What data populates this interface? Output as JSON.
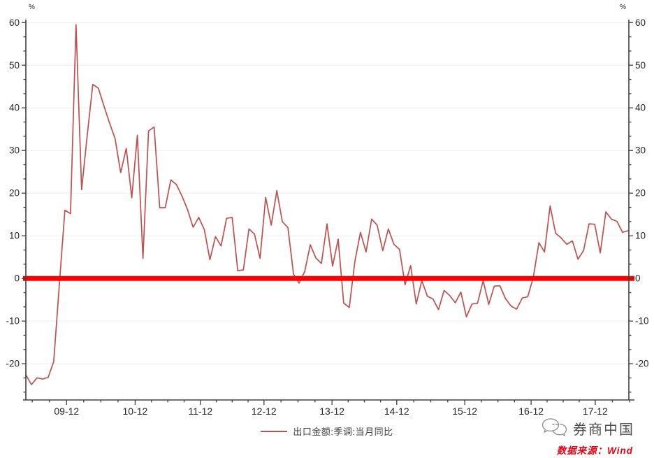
{
  "chart_data": {
    "type": "line",
    "title": "",
    "unit_left": "%",
    "unit_right": "%",
    "xlabel": "",
    "ylabel": "",
    "y_ticks": [
      60,
      50,
      40,
      30,
      20,
      10,
      0,
      -10,
      -20
    ],
    "y_range": [
      -28.5,
      60.7
    ],
    "grid": true,
    "legend_position": "bottom-center",
    "x_tick_labels": [
      "09-12",
      "10-12",
      "11-12",
      "12-12",
      "13-12",
      "14-12",
      "15-12",
      "16-12",
      "17-12"
    ],
    "x_tick_index": [
      7.3,
      19.6,
      31.3,
      42.7,
      54.9,
      66.5,
      78.7,
      90.6,
      102.1
    ],
    "zero_line": {
      "value": 0,
      "color": "#ff0000",
      "thickness": 7
    },
    "colors": {
      "axis": "#404040",
      "grid": "#eeeeee",
      "tick_label": "#262626"
    },
    "series": [
      {
        "name": "出口金额:季调:当月同比",
        "color": "#c0504d",
        "values": [
          -22.6,
          -24.9,
          -23.3,
          -23.6,
          -23.2,
          -19.5,
          -1.5,
          16,
          15.2,
          59.5,
          20.8,
          33.5,
          45.5,
          44.6,
          40.5,
          36.5,
          32.8,
          24.8,
          30.5,
          18.9,
          33.6,
          4.7,
          34.6,
          35.5,
          16.6,
          16.6,
          23.1,
          22,
          19.3,
          16.1,
          12,
          14.3,
          11.5,
          4.4,
          9.8,
          7.6,
          14.1,
          14.3,
          1.8,
          2,
          11.6,
          10.4,
          4.7,
          19,
          12.5,
          20.6,
          13.3,
          11.9,
          1,
          -1.1,
          1.6,
          7.9,
          4.8,
          3.5,
          12.8,
          2.9,
          9.2,
          -5.8,
          -6.8,
          4,
          10.8,
          6.2,
          13.9,
          12.5,
          6.5,
          11.6,
          8,
          6.8,
          -1.5,
          3,
          -6,
          -0.5,
          -4.2,
          -4.8,
          -7.3,
          -2.8,
          -4,
          -5.7,
          -3.2,
          -9,
          -6,
          -5.8,
          -0.5,
          -6.1,
          -1.8,
          -1.7,
          -4.7,
          -6.5,
          -7.2,
          -4.6,
          -4.3,
          0.3,
          8.4,
          6.2,
          17,
          10.6,
          9.5,
          8,
          8.8,
          4.5,
          6.5,
          12.8,
          12.7,
          6,
          15.6,
          13.9,
          13.4,
          10.8,
          11.2
        ]
      }
    ]
  },
  "legend": {
    "label": "出口金额:季调:当月同比"
  },
  "footer": {
    "brand": "券商中国",
    "logo_icon": "chat-bubbles-icon",
    "source": "数据来源：Wind"
  }
}
